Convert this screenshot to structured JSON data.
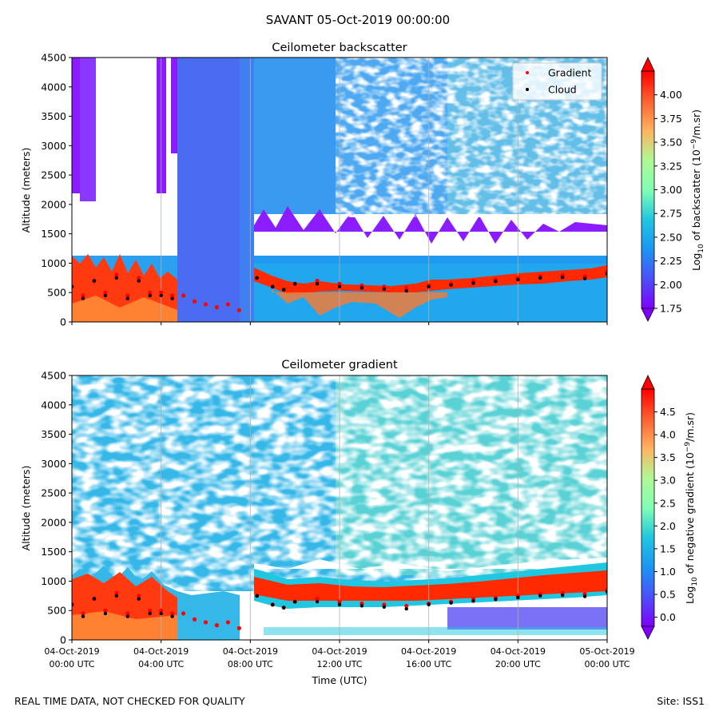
{
  "figure": {
    "suptitle": "SAVANT 05-Oct-2019 00:00:00",
    "footer_left": "REAL TIME DATA, NOT CHECKED FOR QUALITY",
    "footer_right": "Site: ISS1"
  },
  "chart_data": [
    {
      "type": "heatmap",
      "title": "Ceilometer backscatter",
      "xlabel": "",
      "ylabel": "Altitude (meters)",
      "ylim": [
        0,
        4500
      ],
      "yticks": [
        0,
        500,
        1000,
        1500,
        2000,
        2500,
        3000,
        3500,
        4000,
        4500
      ],
      "x_hours_range": [
        0,
        24
      ],
      "x_tick_hours": [
        0,
        4,
        8,
        12,
        16,
        20,
        24
      ],
      "grid": "vertical lines at ticks",
      "colorbar": {
        "label": "Log10 of backscatter (10^-9/m.sr)",
        "label_parts": {
          "a": "Log",
          "b": "10",
          "c": " of backscatter (10",
          "d": "−9",
          "e": "/m.sr)"
        },
        "range": [
          1.75,
          4.25
        ],
        "ticks": [
          "1.75",
          "2.00",
          "2.25",
          "2.50",
          "2.75",
          "3.00",
          "3.25",
          "3.50",
          "3.75",
          "4.00"
        ],
        "colormap": "rainbow",
        "extend": "both"
      },
      "legend": {
        "placement": "top-right",
        "entries": [
          {
            "label": "Gradient",
            "color": "#ff0000"
          },
          {
            "label": "Cloud",
            "color": "#000000"
          }
        ]
      },
      "series": [
        {
          "name": "Gradient",
          "x_hours": [
            0,
            0.5,
            1,
            1.5,
            2,
            2.5,
            3,
            3.5,
            4,
            4.5,
            5,
            5.5,
            6,
            6.5,
            7,
            7.5,
            8.3,
            9,
            9.5,
            10,
            11,
            12,
            13,
            14,
            15,
            16,
            17,
            18,
            19,
            20,
            21,
            22,
            23,
            24
          ],
          "y_m": [
            600,
            450,
            700,
            500,
            800,
            450,
            750,
            500,
            500,
            450,
            450,
            350,
            300,
            250,
            300,
            200,
            750,
            600,
            550,
            650,
            700,
            650,
            620,
            600,
            580,
            620,
            650,
            700,
            720,
            750,
            780,
            800,
            780,
            850
          ]
        },
        {
          "name": "Cloud",
          "x_hours": [
            0,
            0.5,
            1,
            1.5,
            2,
            2.5,
            3,
            3.5,
            4,
            4.5,
            8.3,
            9,
            9.5,
            10,
            11,
            12,
            13,
            14,
            15,
            16,
            17,
            18,
            19,
            20,
            21,
            22,
            23,
            24
          ],
          "y_m": [
            600,
            400,
            700,
            450,
            750,
            400,
            700,
            450,
            450,
            400,
            750,
            600,
            550,
            650,
            650,
            600,
            580,
            560,
            530,
            600,
            630,
            660,
            690,
            720,
            750,
            760,
            740,
            820
          ]
        }
      ]
    },
    {
      "type": "heatmap",
      "title": "Ceilometer gradient",
      "xlabel": "Time (UTC)",
      "ylabel": "Altitude (meters)",
      "ylim": [
        0,
        4500
      ],
      "yticks": [
        0,
        500,
        1000,
        1500,
        2000,
        2500,
        3000,
        3500,
        4000,
        4500
      ],
      "x_hours_range": [
        0,
        24
      ],
      "x_tick_hours": [
        0,
        4,
        8,
        12,
        16,
        20,
        24
      ],
      "x_tick_labels": [
        [
          "04-Oct-2019",
          "00:00 UTC"
        ],
        [
          "04-Oct-2019",
          "04:00 UTC"
        ],
        [
          "04-Oct-2019",
          "08:00 UTC"
        ],
        [
          "04-Oct-2019",
          "12:00 UTC"
        ],
        [
          "04-Oct-2019",
          "16:00 UTC"
        ],
        [
          "04-Oct-2019",
          "20:00 UTC"
        ],
        [
          "05-Oct-2019",
          "00:00 UTC"
        ]
      ],
      "grid": "vertical lines at ticks",
      "colorbar": {
        "label": "Log10 of negative gradient (10^-9/m.sr)",
        "label_parts": {
          "a": "Log",
          "b": "10",
          "c": " of negative gradient (10",
          "d": "−9",
          "e": "/m.sr)"
        },
        "range": [
          -0.2,
          5.0
        ],
        "ticks": [
          "0.0",
          "0.5",
          "1.0",
          "1.5",
          "2.0",
          "2.5",
          "3.0",
          "3.5",
          "4.0",
          "4.5"
        ],
        "colormap": "rainbow",
        "extend": "both"
      },
      "series": [
        {
          "name": "Gradient",
          "x_hours": [
            0,
            0.5,
            1,
            1.5,
            2,
            2.5,
            3,
            3.5,
            4,
            4.5,
            5,
            5.5,
            6,
            6.5,
            7,
            7.5,
            8.3,
            9,
            9.5,
            10,
            11,
            12,
            13,
            14,
            15,
            16,
            17,
            18,
            19,
            20,
            21,
            22,
            23,
            24
          ],
          "y_m": [
            600,
            450,
            700,
            500,
            800,
            450,
            750,
            500,
            500,
            450,
            450,
            350,
            300,
            250,
            300,
            200,
            750,
            600,
            550,
            650,
            700,
            650,
            620,
            600,
            580,
            620,
            650,
            700,
            720,
            750,
            780,
            800,
            780,
            850
          ]
        },
        {
          "name": "Cloud",
          "x_hours": [
            0,
            0.5,
            1,
            1.5,
            2,
            2.5,
            3,
            3.5,
            4,
            4.5,
            8.3,
            9,
            9.5,
            10,
            11,
            12,
            13,
            14,
            15,
            16,
            17,
            18,
            19,
            20,
            21,
            22,
            23,
            24
          ],
          "y_m": [
            600,
            400,
            700,
            450,
            750,
            400,
            700,
            450,
            450,
            400,
            750,
            600,
            550,
            650,
            650,
            600,
            580,
            560,
            530,
            600,
            630,
            660,
            690,
            720,
            750,
            760,
            740,
            820
          ]
        }
      ]
    }
  ]
}
